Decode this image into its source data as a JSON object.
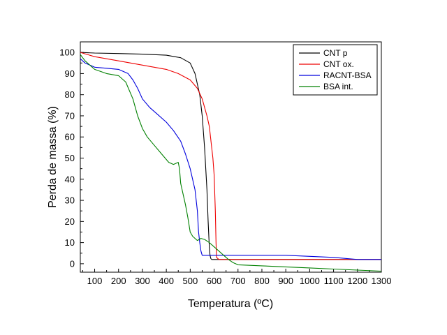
{
  "chart_data": {
    "type": "line",
    "title": "",
    "xlabel": "Temperatura (ºC)",
    "ylabel": "Perda de massa (%)",
    "xlim": [
      40,
      1300
    ],
    "ylim": [
      -4,
      105
    ],
    "xticks": [
      100,
      200,
      300,
      400,
      500,
      600,
      700,
      800,
      900,
      1000,
      1100,
      1200,
      1300
    ],
    "yticks": [
      0,
      10,
      20,
      30,
      40,
      50,
      60,
      70,
      80,
      90,
      100
    ],
    "grid": false,
    "legend_position": "top-right",
    "series": [
      {
        "name": "CNT p",
        "color": "#000000",
        "x": [
          40,
          100,
          200,
          300,
          400,
          460,
          500,
          520,
          540,
          550,
          560,
          570,
          575,
          580,
          583,
          586,
          590,
          600,
          700,
          800,
          900,
          1000,
          1100,
          1200,
          1300
        ],
        "y": [
          100,
          99.7,
          99.5,
          99.2,
          98.7,
          97.5,
          95,
          90,
          80,
          70,
          55,
          35,
          20,
          8,
          4,
          2.5,
          2,
          2,
          2,
          2,
          2,
          2,
          2,
          2,
          2
        ]
      },
      {
        "name": "CNT ox.",
        "color": "#ee0000",
        "x": [
          40,
          100,
          200,
          300,
          400,
          450,
          500,
          530,
          550,
          570,
          580,
          590,
          595,
          600,
          605,
          608,
          610,
          620,
          700,
          800,
          900,
          1000,
          1100,
          1200,
          1300
        ],
        "y": [
          100,
          98,
          96,
          94,
          92,
          90,
          87,
          83,
          78,
          70,
          65,
          55,
          50,
          42,
          25,
          10,
          3,
          2,
          2,
          2,
          2,
          2,
          2,
          2,
          2
        ]
      },
      {
        "name": "RACNT-BSA",
        "color": "#0000dd",
        "x": [
          40,
          60,
          80,
          100,
          150,
          200,
          240,
          260,
          280,
          300,
          330,
          360,
          400,
          430,
          460,
          480,
          500,
          520,
          530,
          535,
          540,
          545,
          550,
          600,
          700,
          800,
          900,
          1000,
          1100,
          1200,
          1300
        ],
        "y": [
          97,
          95,
          94,
          93,
          92.5,
          92,
          90,
          87,
          83,
          78,
          74,
          71,
          67,
          63,
          58,
          52,
          45,
          35,
          25,
          15,
          10,
          6,
          4,
          4,
          4,
          4,
          4,
          3.5,
          3,
          2,
          2
        ]
      },
      {
        "name": "BSA int.",
        "color": "#008000",
        "x": [
          40,
          60,
          100,
          150,
          200,
          230,
          260,
          280,
          300,
          320,
          350,
          380,
          410,
          430,
          450,
          455,
          460,
          470,
          480,
          490,
          500,
          510,
          520,
          530,
          545,
          560,
          580,
          600,
          620,
          640,
          660,
          680,
          700,
          800,
          900,
          1000,
          1100,
          1200,
          1300
        ],
        "y": [
          99,
          96,
          92,
          90,
          89,
          86,
          78,
          70,
          64,
          60,
          56,
          52,
          48,
          47,
          48,
          45,
          38,
          33,
          28,
          22,
          15,
          13,
          12,
          11,
          12,
          11.5,
          10,
          8,
          6,
          4,
          2,
          0.5,
          -0.5,
          -1,
          -1.5,
          -2,
          -2.5,
          -3,
          -3.5
        ]
      }
    ]
  }
}
